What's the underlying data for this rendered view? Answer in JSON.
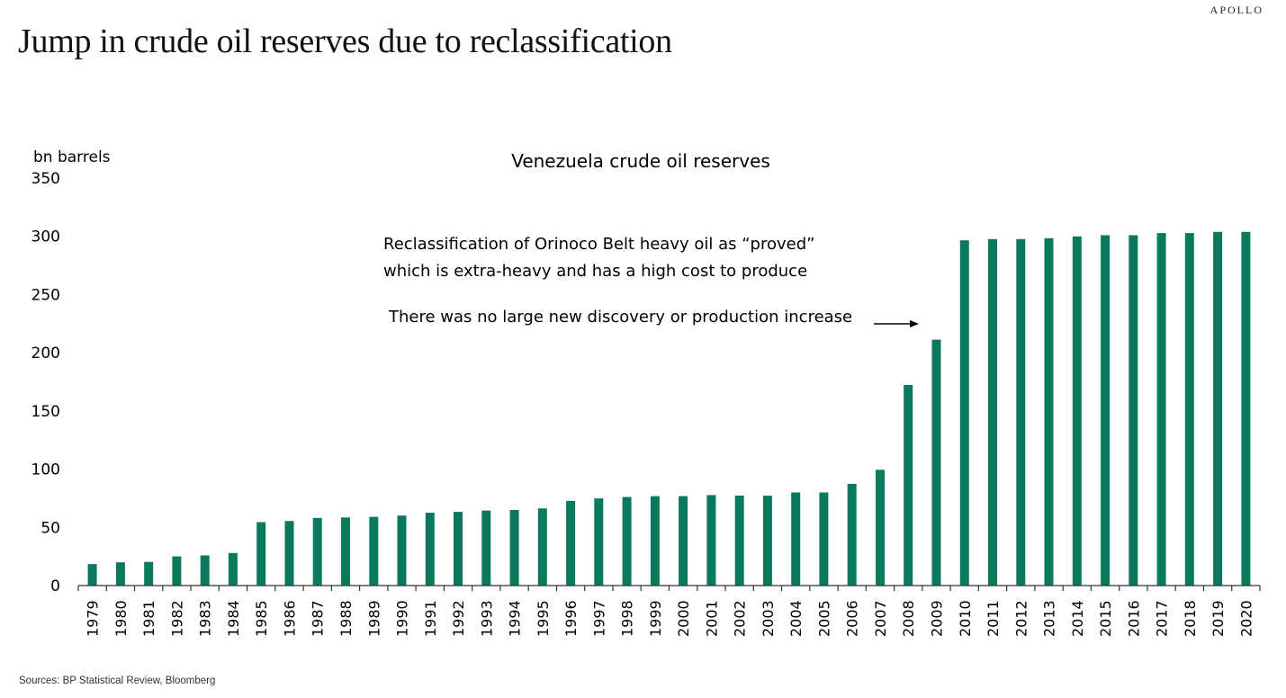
{
  "page": {
    "title": "Jump in crude oil reserves due to reclassification",
    "brand": "APOLLO",
    "source": "Sources: BP Statistical Review, Bloomberg"
  },
  "colors": {
    "bar": "#0a7a5f",
    "axis": "#333333",
    "text": "#000000"
  },
  "chart_data": {
    "type": "bar",
    "title": "Venezuela crude oil reserves",
    "xlabel": "",
    "ylabel": "bn barrels",
    "ylim": [
      0,
      350
    ],
    "yticks": [
      0,
      50,
      100,
      150,
      200,
      250,
      300,
      350
    ],
    "grid": false,
    "legend": "none",
    "categories": [
      "1979",
      "1980",
      "1981",
      "1982",
      "1983",
      "1984",
      "1985",
      "1986",
      "1987",
      "1988",
      "1989",
      "1990",
      "1991",
      "1992",
      "1993",
      "1994",
      "1995",
      "1996",
      "1997",
      "1998",
      "1999",
      "2000",
      "2001",
      "2002",
      "2003",
      "2004",
      "2005",
      "2006",
      "2007",
      "2008",
      "2009",
      "2010",
      "2011",
      "2012",
      "2013",
      "2014",
      "2015",
      "2016",
      "2017",
      "2018",
      "2019",
      "2020"
    ],
    "series": [
      {
        "name": "Venezuela crude oil reserves",
        "values": [
          18.5,
          19.9,
          20.3,
          25.0,
          25.9,
          28.0,
          54.5,
          55.5,
          58.1,
          58.5,
          59.0,
          60.1,
          62.6,
          63.3,
          64.4,
          64.9,
          66.3,
          72.7,
          74.9,
          76.1,
          76.8,
          76.8,
          77.7,
          77.3,
          77.2,
          80.0,
          80.0,
          87.3,
          99.4,
          172.3,
          211.2,
          296.5,
          297.6,
          297.6,
          298.4,
          299.9,
          300.9,
          300.9,
          302.8,
          302.8,
          303.8,
          303.8
        ]
      }
    ],
    "annotations": [
      "Reclassification of Orinoco Belt heavy oil as “proved”",
      "which is extra-heavy and has a high cost to produce",
      "There was no large new discovery or production increase"
    ]
  }
}
